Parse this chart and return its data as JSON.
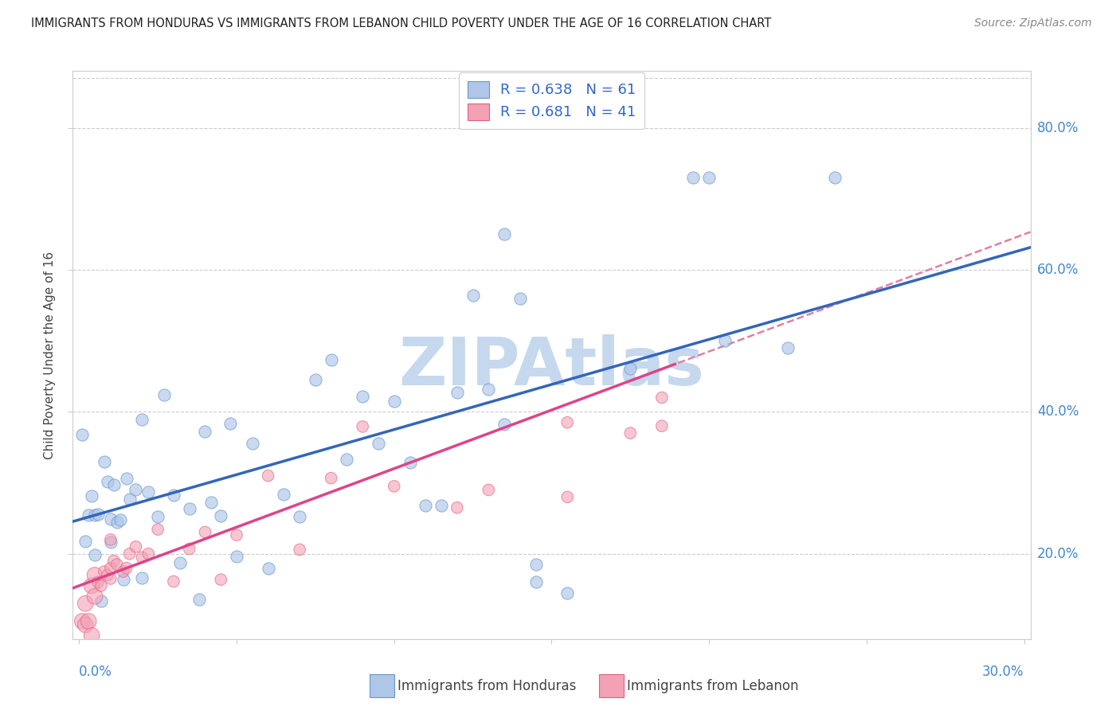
{
  "title": "IMMIGRANTS FROM HONDURAS VS IMMIGRANTS FROM LEBANON CHILD POVERTY UNDER THE AGE OF 16 CORRELATION CHART",
  "source": "Source: ZipAtlas.com",
  "ylabel": "Child Poverty Under the Age of 16",
  "xlim": [
    -0.002,
    0.302
  ],
  "ylim": [
    0.08,
    0.88
  ],
  "ytick_values": [
    0.2,
    0.4,
    0.6,
    0.8
  ],
  "ytick_labels": [
    "20.0%",
    "40.0%",
    "60.0%",
    "80.0%"
  ],
  "xtick_left_label": "0.0%",
  "xtick_right_label": "30.0%",
  "legend_r_honduras": "R = 0.638",
  "legend_n_honduras": "N = 61",
  "legend_r_lebanon": "R = 0.681",
  "legend_n_lebanon": "N = 41",
  "honduras_color": "#aec6e8",
  "honduras_edge": "#6699cc",
  "lebanon_color": "#f4a0b5",
  "lebanon_edge": "#e06080",
  "line_honduras_color": "#3366bb",
  "line_lebanon_color": "#dd4488",
  "dashed_line_color": "#e080a0",
  "watermark_text": "ZIPAtlas",
  "watermark_color": "#c5d8ee",
  "tick_color": "#4488cc",
  "bottom_legend_honduras": "Immigrants from Honduras",
  "bottom_legend_lebanon": "Immigrants from Lebanon",
  "hon_intercept": 0.248,
  "hon_slope": 1.27,
  "leb_intercept": 0.155,
  "leb_slope": 1.65
}
